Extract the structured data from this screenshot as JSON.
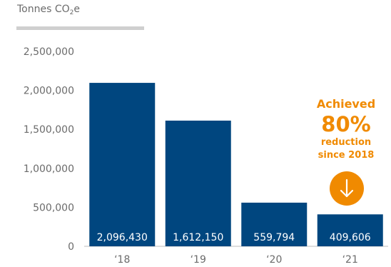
{
  "chart_data": {
    "type": "bar",
    "ylabel_main": "Tonnes CO",
    "ylabel_sub": "2",
    "ylabel_tail": "e",
    "categories": [
      "‘18",
      "‘19",
      "‘20",
      "‘21"
    ],
    "values": [
      2096430,
      1612150,
      559794,
      409606
    ],
    "value_labels": [
      "2,096,430",
      "1,612,150",
      "559,794",
      "409,606"
    ],
    "yticks": [
      0,
      500000,
      1000000,
      1500000,
      2000000,
      2500000
    ],
    "ytick_labels": [
      "0",
      "500,000",
      "1,000,000",
      "1,500,000",
      "2,000,000",
      "2,500,000"
    ],
    "ylim": [
      0,
      2500000
    ],
    "grid": false,
    "bar_color": "#00467f",
    "accent_color": "#f08a00"
  },
  "callout": {
    "line1": "Achieved",
    "line2": "80%",
    "line3": "reduction",
    "line4": "since 2018",
    "icon": "arrow-down-icon"
  }
}
